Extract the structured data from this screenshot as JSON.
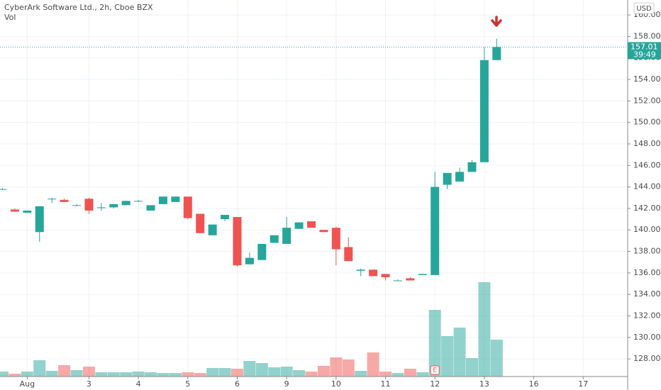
{
  "chart_data": {
    "type": "candlestick",
    "title": "CyberArk Software Ltd., 2h, Cboe BZX",
    "volume_label": "Vol",
    "currency": "USD",
    "last_price": 157.01,
    "countdown": "39:49",
    "earnings_label": "E",
    "up_color": "#26a69a",
    "down_color": "#ef5350",
    "grid": true,
    "open": [
      143.8,
      141.9,
      141.6,
      139.8,
      142.9,
      142.8,
      142.3,
      142.9,
      142.1,
      142.1,
      142.3,
      142.7,
      141.8,
      142.4,
      142.6,
      143.1,
      141.5,
      139.5,
      141.0,
      141.2,
      136.8,
      137.2,
      138.8,
      138.7,
      140.1,
      140.8,
      140.0,
      140.2,
      138.4,
      136.2,
      136.3,
      135.9,
      135.3,
      135.5,
      135.8,
      135.8,
      144.2,
      144.5,
      145.4,
      146.3,
      155.8
    ],
    "high": [
      143.9,
      142.0,
      141.8,
      142.2,
      143.0,
      142.9,
      142.4,
      143.0,
      142.5,
      142.4,
      142.7,
      142.8,
      142.3,
      143.1,
      143.1,
      143.1,
      141.5,
      140.5,
      141.4,
      141.2,
      137.9,
      138.7,
      139.5,
      141.2,
      140.7,
      140.8,
      140.0,
      140.3,
      139.3,
      136.4,
      136.3,
      135.9,
      135.4,
      135.6,
      135.9,
      145.4,
      145.3,
      145.8,
      146.5,
      157.0,
      157.8
    ],
    "low": [
      143.7,
      141.7,
      141.6,
      138.9,
      142.5,
      142.6,
      142.2,
      141.5,
      141.8,
      142.0,
      142.3,
      142.6,
      141.8,
      142.4,
      142.6,
      141.0,
      139.7,
      139.5,
      140.8,
      136.6,
      136.8,
      137.2,
      138.8,
      138.7,
      140.1,
      140.2,
      139.8,
      136.7,
      137.1,
      135.7,
      135.7,
      135.3,
      135.3,
      135.3,
      135.8,
      135.8,
      143.8,
      144.5,
      145.4,
      146.3,
      155.8
    ],
    "close": [
      143.8,
      141.7,
      141.8,
      142.2,
      142.9,
      142.6,
      142.3,
      141.8,
      142.1,
      142.4,
      142.7,
      142.7,
      142.3,
      143.1,
      143.1,
      141.1,
      139.7,
      140.5,
      141.4,
      136.7,
      137.4,
      138.7,
      139.5,
      140.2,
      140.7,
      140.2,
      139.8,
      138.2,
      137.1,
      136.3,
      135.7,
      135.6,
      135.3,
      135.3,
      135.9,
      144.0,
      145.3,
      145.4,
      146.3,
      155.8,
      157.01
    ],
    "volume": [
      7,
      4,
      7,
      23,
      8,
      16,
      9,
      14,
      6,
      6,
      6,
      7,
      6,
      5,
      5,
      6,
      5,
      12,
      12,
      11,
      22,
      19,
      13,
      14,
      9,
      7,
      15,
      27,
      24,
      8,
      34,
      7,
      5,
      11,
      6,
      94,
      57,
      69,
      26,
      133,
      52
    ],
    "xlim": [
      -0.2,
      50.6
    ],
    "xticks": [
      {
        "value": 2,
        "label": "Aug"
      },
      {
        "value": 7,
        "label": "3"
      },
      {
        "value": 11,
        "label": "4"
      },
      {
        "value": 15,
        "label": "5"
      },
      {
        "value": 19,
        "label": "6"
      },
      {
        "value": 23,
        "label": "9"
      },
      {
        "value": 27,
        "label": "10"
      },
      {
        "value": 31,
        "label": "11"
      },
      {
        "value": 35,
        "label": "12"
      },
      {
        "value": 39,
        "label": "13"
      },
      {
        "value": 43,
        "label": "16"
      },
      {
        "value": 47,
        "label": "17"
      }
    ],
    "ylim": [
      126.36,
      161.39
    ],
    "yticks": [
      {
        "value": 128,
        "label": "128.00"
      },
      {
        "value": 130,
        "label": "130.00"
      },
      {
        "value": 132,
        "label": "132.00"
      },
      {
        "value": 134,
        "label": "134.00"
      },
      {
        "value": 136,
        "label": "136.00"
      },
      {
        "value": 138,
        "label": "138.00"
      },
      {
        "value": 140,
        "label": "140.00"
      },
      {
        "value": 142,
        "label": "142.00"
      },
      {
        "value": 144,
        "label": "144.00"
      },
      {
        "value": 146,
        "label": "146.00"
      },
      {
        "value": 148,
        "label": "148.00"
      },
      {
        "value": 150,
        "label": "150.00"
      },
      {
        "value": 152,
        "label": "152.00"
      },
      {
        "value": 154,
        "label": "154.00"
      },
      {
        "value": 156,
        "label": "156.00"
      },
      {
        "value": 158,
        "label": "158.00"
      },
      {
        "value": 160,
        "label": "160.00"
      }
    ]
  }
}
